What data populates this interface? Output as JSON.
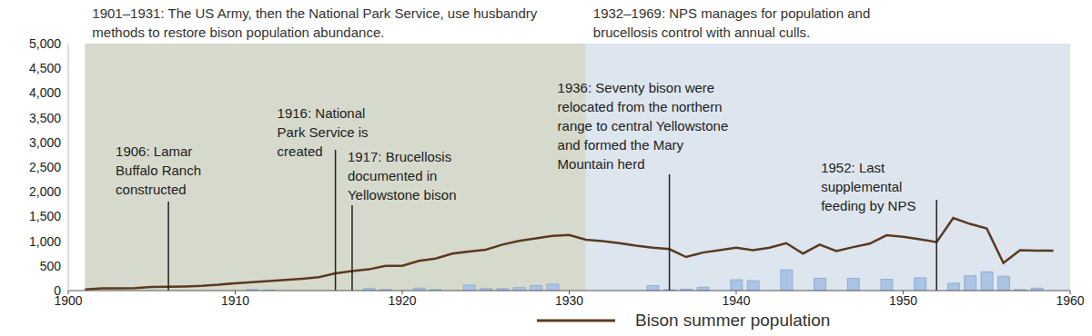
{
  "chart_data": {
    "type": "combo",
    "x": [
      1901,
      1902,
      1903,
      1904,
      1905,
      1906,
      1907,
      1908,
      1909,
      1910,
      1911,
      1912,
      1913,
      1914,
      1915,
      1916,
      1917,
      1918,
      1919,
      1920,
      1921,
      1922,
      1923,
      1924,
      1925,
      1926,
      1927,
      1928,
      1929,
      1930,
      1931,
      1932,
      1933,
      1934,
      1935,
      1936,
      1937,
      1938,
      1939,
      1940,
      1941,
      1942,
      1943,
      1944,
      1945,
      1946,
      1947,
      1948,
      1949,
      1950,
      1951,
      1952,
      1953,
      1954,
      1955,
      1956,
      1957,
      1958,
      1959
    ],
    "series": [
      {
        "name": "Bison summer population",
        "type": "line",
        "color": "#5b3a1e",
        "values": [
          25,
          44,
          47,
          51,
          74,
          78,
          84,
          96,
          118,
          149,
          168,
          192,
          215,
          239,
          270,
          348,
          397,
          430,
          501,
          501,
          602,
          647,
          748,
          792,
          829,
          931,
          1008,
          1057,
          1109,
          1124,
          1030,
          1000,
          960,
          910,
          870,
          840,
          680,
          770,
          820,
          870,
          820,
          870,
          960,
          750,
          930,
          800,
          880,
          950,
          1120,
          1090,
          1040,
          980,
          1470,
          1350,
          1260,
          560,
          820,
          810,
          810
        ]
      },
      {
        "type": "bar",
        "color": "#a9c4e4",
        "values": [
          null,
          null,
          null,
          null,
          null,
          null,
          null,
          null,
          null,
          null,
          20,
          15,
          null,
          null,
          null,
          null,
          null,
          40,
          20,
          null,
          50,
          20,
          null,
          110,
          40,
          40,
          60,
          100,
          130,
          null,
          null,
          null,
          null,
          null,
          100,
          20,
          30,
          70,
          null,
          220,
          200,
          null,
          420,
          null,
          250,
          null,
          250,
          null,
          230,
          null,
          260,
          null,
          150,
          300,
          380,
          290,
          20,
          50,
          null
        ]
      }
    ],
    "xlim": [
      1900,
      1960
    ],
    "xticks": [
      1900,
      1910,
      1920,
      1930,
      1940,
      1950,
      1960
    ],
    "ylim": [
      0,
      5000
    ],
    "yticks": [
      0,
      500,
      {
        "value": 1000,
        "label": "1,000"
      },
      {
        "value": 1500,
        "label": "1,500"
      },
      {
        "value": 2000,
        "label": "2,000"
      },
      {
        "value": 2500,
        "label": "2,500"
      },
      {
        "value": 3000,
        "label": "3,000"
      },
      {
        "value": 3500,
        "label": "3,500"
      },
      {
        "value": 4000,
        "label": "4,000"
      },
      {
        "value": 4500,
        "label": "4,500"
      },
      {
        "value": 5000,
        "label": "5,000"
      }
    ],
    "grid": false,
    "legend": "bottom",
    "regions": [
      {
        "start": 1901,
        "end": 1931,
        "color": "#d6dacd",
        "label": "1901–1931: The US Army, then the National Park Service, use husbandry\nmethods to restore bison population abundance."
      },
      {
        "start": 1931,
        "end": 1960,
        "color": "#dde5ef",
        "label": "1932–1969: NPS manages for population and\nbrucellosis control with annual culls."
      }
    ],
    "annotations": [
      {
        "x": 1906,
        "text": "1906: Lamar\nBuffalo Ranch\nconstructed"
      },
      {
        "x": 1916,
        "text": "1916: National\nPark Service is\ncreated"
      },
      {
        "x": 1917,
        "text": "1917: Brucellosis\ndocumented in\nYellowstone bison"
      },
      {
        "x": 1936,
        "text": "1936: Seventy bison were\nrelocated from the northern\nrange to central Yellowstone\nand formed the Mary\nMountain herd"
      },
      {
        "x": 1952,
        "text": "1952: Last\nsupplemental\nfeeding by NPS"
      }
    ]
  }
}
